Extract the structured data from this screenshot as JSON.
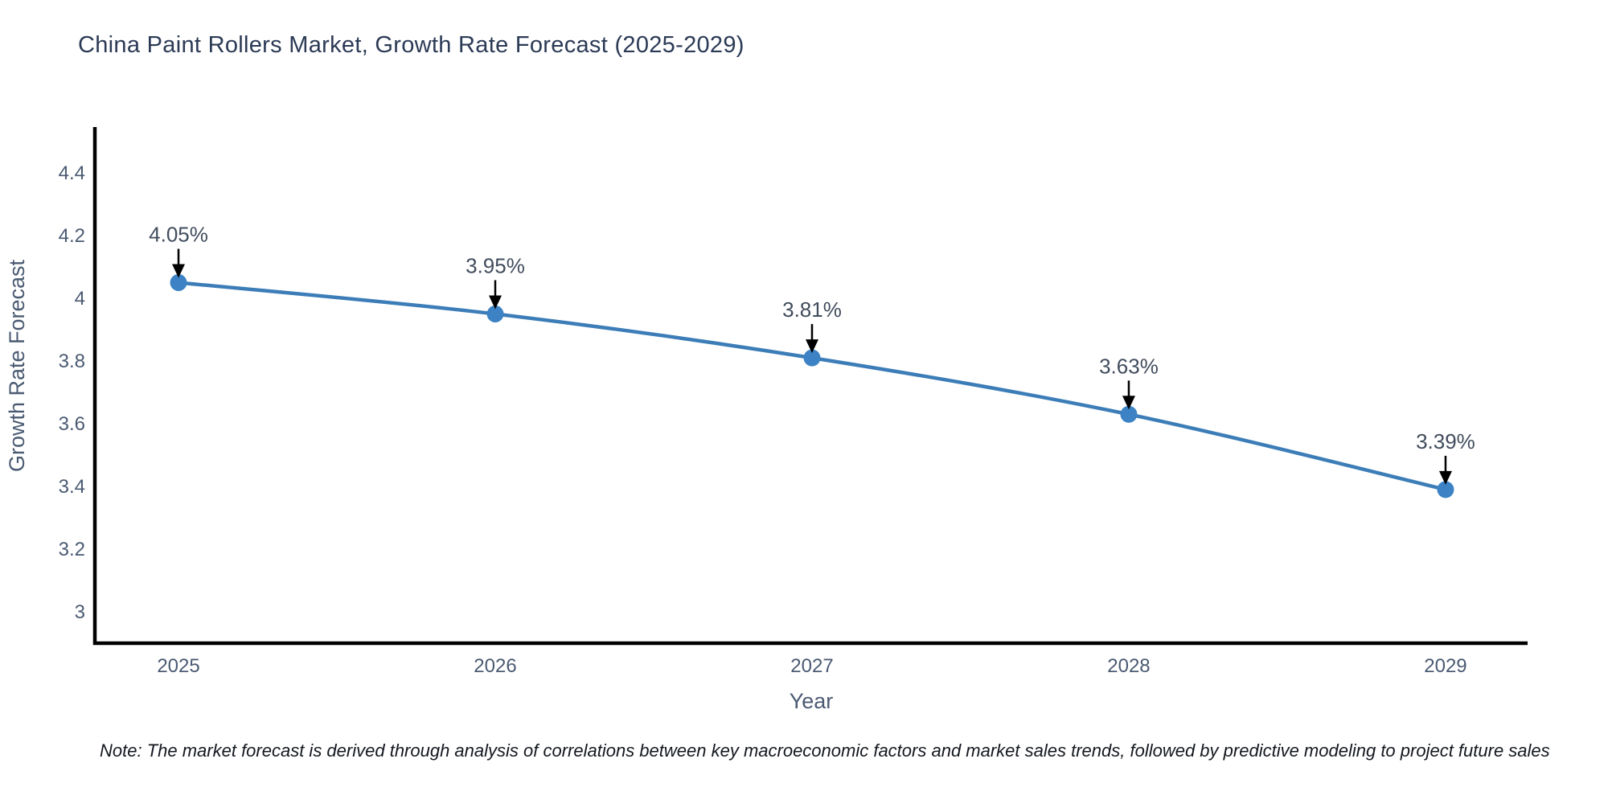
{
  "chart_data": {
    "type": "line",
    "title": "China Paint Rollers Market, Growth Rate Forecast (2025-2029)",
    "xlabel": "Year",
    "ylabel": "Growth Rate Forecast",
    "x": [
      2025,
      2026,
      2027,
      2028,
      2029
    ],
    "x_tick_labels": [
      "2025",
      "2026",
      "2027",
      "2028",
      "2029"
    ],
    "series": [
      {
        "name": "Growth Rate Forecast",
        "values": [
          4.05,
          3.95,
          3.81,
          3.63,
          3.39
        ]
      }
    ],
    "point_labels": [
      "4.05%",
      "3.95%",
      "3.81%",
      "3.63%",
      "3.39%"
    ],
    "y_ticks": [
      3,
      3.2,
      3.4,
      3.6,
      3.8,
      4,
      4.2,
      4.4
    ],
    "y_tick_labels": [
      "3",
      "3.2",
      "3.4",
      "3.6",
      "3.8",
      "4",
      "4.2",
      "4.4"
    ],
    "xlim": [
      2024.736,
      2029.259
    ],
    "ylim": [
      2.9,
      4.541
    ],
    "grid": false,
    "legend": "none",
    "annotation_style": "down-arrow-to-point",
    "colors": {
      "line": "#3c7db8",
      "marker": "#3c82c4",
      "arrow": "#000000",
      "axis": "#000000",
      "tick_text": "#4a5a72",
      "title_text": "#2b3a55",
      "annotation_text": "#414c5c",
      "note_text": "#14181f"
    },
    "note": "Note: The market forecast is derived through analysis of correlations between key macroeconomic factors and market sales trends, followed by predictive modeling to project future sales"
  }
}
